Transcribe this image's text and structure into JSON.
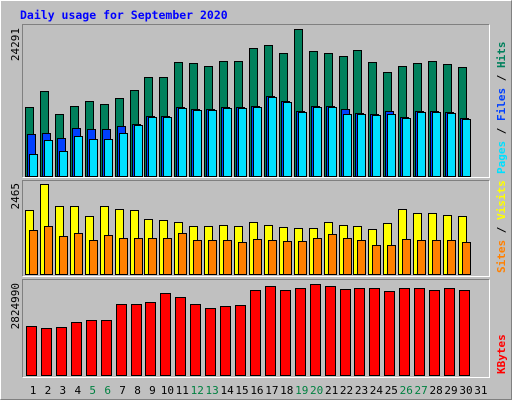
{
  "chart_data": {
    "type": "bar",
    "title": "Daily usage for September 2020",
    "categories": [
      "1",
      "2",
      "3",
      "4",
      "5",
      "6",
      "7",
      "8",
      "9",
      "10",
      "11",
      "12",
      "13",
      "14",
      "15",
      "16",
      "17",
      "18",
      "19",
      "20",
      "21",
      "22",
      "23",
      "24",
      "25",
      "26",
      "27",
      "28",
      "29",
      "30",
      "31"
    ],
    "category_colors": [
      "#000000",
      "#000000",
      "#000000",
      "#000000",
      "#008040",
      "#008040",
      "#000000",
      "#000000",
      "#000000",
      "#000000",
      "#000000",
      "#008040",
      "#008040",
      "#000000",
      "#000000",
      "#000000",
      "#000000",
      "#000000",
      "#008040",
      "#008040",
      "#000000",
      "#000000",
      "#000000",
      "#000000",
      "#000000",
      "#008040",
      "#008040",
      "#000000",
      "#000000",
      "#000000",
      "#000000"
    ],
    "panels": [
      {
        "ylim": [
          0,
          24291
        ],
        "yticks": [
          24291
        ],
        "series": [
          {
            "name": "Hits",
            "color": "#00805c",
            "values": [
              11400,
              14000,
              10200,
              11600,
              12400,
              11900,
              12900,
              14200,
              16400,
              16400,
              18800,
              18700,
              18200,
              19000,
              19000,
              21200,
              21600,
              20300,
              24291,
              20700,
              20300,
              19800,
              20800,
              18800,
              17200,
              18200,
              18700,
              19000,
              18500,
              18000,
              null
            ]
          },
          {
            "name": "Files",
            "color": "#0040ff",
            "values": [
              6900,
              7100,
              6300,
              7900,
              7800,
              7800,
              8300,
              8600,
              9900,
              9900,
              11400,
              11100,
              11100,
              11400,
              11400,
              11600,
              13300,
              12400,
              10800,
              11600,
              11600,
              11000,
              10400,
              10300,
              10800,
              9800,
              10800,
              10800,
              10600,
              9600,
              null
            ]
          },
          {
            "name": "Pages",
            "color": "#00e0ff",
            "values": [
              3600,
              5900,
              4100,
              6600,
              6100,
              6100,
              7100,
              8400,
              9700,
              9700,
              11200,
              10900,
              10900,
              11200,
              11200,
              11400,
              13100,
              12200,
              10600,
              11400,
              11400,
              10200,
              10200,
              10100,
              10200,
              9600,
              10600,
              10600,
              10400,
              9400,
              null
            ]
          }
        ]
      },
      {
        "ylim": [
          0,
          2465
        ],
        "yticks": [
          2465
        ],
        "series": [
          {
            "name": "Visits",
            "color": "#ffff00",
            "values": [
              1750,
              2465,
              1860,
              1860,
              1590,
              1860,
              1780,
              1750,
              1510,
              1480,
              1420,
              1310,
              1310,
              1340,
              1310,
              1420,
              1340,
              1290,
              1260,
              1260,
              1420,
              1340,
              1310,
              1230,
              1400,
              1780,
              1670,
              1670,
              1620,
              1590,
              null
            ]
          },
          {
            "name": "Sites",
            "color": "#ff8000",
            "values": [
              1210,
              1310,
              1040,
              1120,
              930,
              1070,
              990,
              990,
              990,
              990,
              1120,
              930,
              930,
              930,
              880,
              960,
              930,
              900,
              900,
              990,
              1100,
              990,
              930,
              800,
              800,
              960,
              930,
              930,
              930,
              880,
              null
            ]
          }
        ]
      },
      {
        "ylim": [
          0,
          2824990
        ],
        "yticks": [
          2824990
        ],
        "series": [
          {
            "name": "KBytes",
            "color": "#ff0000",
            "values": [
              1521000,
              1459000,
              1490000,
              1645000,
              1707000,
              1707000,
              2204000,
              2204000,
              2266000,
              2546000,
              2421000,
              2204000,
              2080000,
              2142000,
              2173000,
              2639000,
              2763000,
              2639000,
              2701000,
              2824990,
              2763000,
              2670000,
              2701000,
              2701000,
              2608000,
              2701000,
              2701000,
              2639000,
              2701000,
              2639000,
              null
            ]
          }
        ]
      }
    ]
  }
}
